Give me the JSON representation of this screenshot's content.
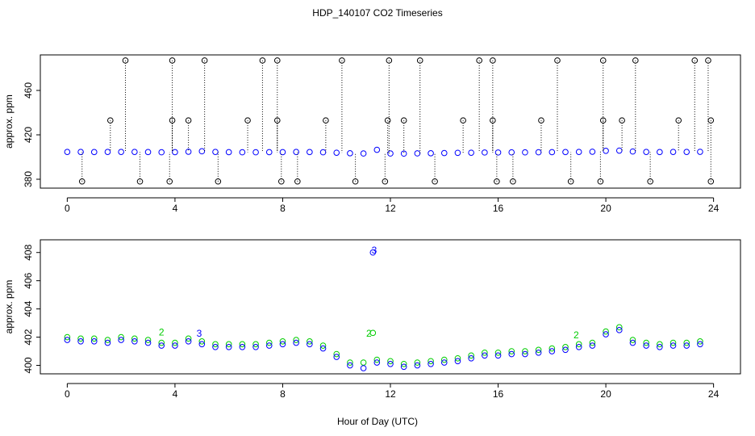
{
  "chart_data": [
    {
      "type": "scatter",
      "title": "HDP_140107  CO2 Timeseries",
      "ylabel": "approx. ppm",
      "xlim": [
        -1,
        25
      ],
      "xticks": [
        0,
        4,
        8,
        12,
        16,
        20,
        24
      ],
      "ylim": [
        372,
        492
      ],
      "yticks": [
        380,
        420,
        460
      ],
      "series": [
        {
          "color": "#0000ff",
          "x": [
            0,
            0.5,
            1,
            1.5,
            2,
            2.5,
            3,
            3.5,
            4,
            4.5,
            5,
            5.5,
            6,
            6.5,
            7,
            7.5,
            8,
            8.5,
            9,
            9.5,
            10,
            10.5,
            11,
            11.5,
            12,
            12.5,
            13,
            13.5,
            14,
            14.5,
            15,
            15.5,
            16,
            16.5,
            17,
            17.5,
            18,
            18.5,
            19,
            19.5,
            20,
            20.5,
            21,
            21.5,
            22,
            22.5,
            23,
            23.5
          ],
          "values": [
            404.6,
            404.6,
            404.5,
            404.6,
            404.6,
            404.6,
            404.5,
            404.3,
            404.4,
            404.8,
            405.2,
            404.6,
            404.4,
            404.3,
            404.3,
            404.4,
            404.4,
            404.6,
            404.5,
            404.3,
            403.9,
            403.4,
            403.2,
            406.5,
            403.2,
            403.1,
            403.3,
            403.4,
            403.6,
            403.8,
            403.9,
            404.1,
            404.1,
            404.2,
            404.2,
            404.3,
            404.4,
            404.5,
            404.6,
            404.8,
            405.6,
            405.8,
            405.0,
            404.6,
            404.5,
            404.6,
            404.6,
            404.7
          ]
        },
        {
          "color": "#000000",
          "drops": true,
          "x": [
            2.16,
            3.9,
            5.1,
            7.25,
            7.8,
            10.2,
            11.95,
            13.1,
            15.3,
            15.8,
            18.2,
            19.9,
            21.1,
            23.3,
            23.8,
            1.6,
            3.9,
            4.5,
            6.7,
            7.8,
            9.6,
            11.9,
            12.5,
            14.7,
            15.8,
            17.6,
            19.9,
            20.6,
            22.7,
            23.9,
            0.55,
            2.7,
            3.8,
            5.6,
            7.95,
            8.55,
            10.7,
            11.8,
            13.65,
            15.95,
            16.55,
            18.7,
            19.8,
            21.65,
            23.9
          ],
          "values": [
            487,
            487,
            487,
            487,
            487,
            487,
            487,
            487,
            487,
            487,
            487,
            487,
            487,
            487,
            487,
            433,
            433,
            433,
            433,
            433,
            433,
            433,
            433,
            433,
            433,
            433,
            433,
            433,
            433,
            433,
            378,
            378,
            378,
            378,
            378,
            378,
            378,
            378,
            378,
            378,
            378,
            378,
            378,
            378,
            378
          ]
        }
      ]
    },
    {
      "type": "scatter",
      "ylabel": "approx. ppm",
      "xlabel": "Hour of Day (UTC)",
      "xlim": [
        -1,
        25
      ],
      "xticks": [
        0,
        4,
        8,
        12,
        16,
        20,
        24
      ],
      "ylim": [
        399.4,
        408.9
      ],
      "yticks": [
        400,
        402,
        404,
        406,
        408
      ],
      "series": [
        {
          "color": "#00cc00",
          "x": [
            0,
            0.5,
            1,
            1.5,
            2,
            2.5,
            3,
            3.5,
            4,
            4.5,
            5,
            5.5,
            6,
            6.5,
            7,
            7.5,
            8,
            8.5,
            9,
            9.5,
            10,
            10.5,
            11,
            11.35,
            11.5,
            12,
            12.5,
            13,
            13.5,
            14,
            14.5,
            15,
            15.5,
            16,
            16.5,
            17,
            17.5,
            18,
            18.5,
            19,
            19.5,
            20,
            20.5,
            21,
            21.5,
            22,
            22.5,
            23,
            23.5
          ],
          "values": [
            402.0,
            401.9,
            401.9,
            401.8,
            402.0,
            401.9,
            401.8,
            401.6,
            401.6,
            401.9,
            401.7,
            401.5,
            401.5,
            401.5,
            401.5,
            401.6,
            401.7,
            401.8,
            401.7,
            401.4,
            400.8,
            400.2,
            400.2,
            402.3,
            400.4,
            400.3,
            400.1,
            400.2,
            400.3,
            400.4,
            400.5,
            400.7,
            400.9,
            400.9,
            401.0,
            401.0,
            401.1,
            401.2,
            401.3,
            401.5,
            401.6,
            402.4,
            402.7,
            401.8,
            401.6,
            401.5,
            401.6,
            401.6,
            401.7
          ]
        },
        {
          "color": "#0000ff",
          "x": [
            0,
            0.5,
            1,
            1.5,
            2,
            2.5,
            3,
            3.5,
            4,
            4.5,
            5,
            5.5,
            6,
            6.5,
            7,
            7.5,
            8,
            8.5,
            9,
            9.5,
            10,
            10.5,
            11,
            11.35,
            11.5,
            12,
            12.5,
            13,
            13.5,
            14,
            14.5,
            15,
            15.5,
            16,
            16.5,
            17,
            17.5,
            18,
            18.5,
            19,
            19.5,
            20,
            20.5,
            21,
            21.5,
            22,
            22.5,
            23,
            23.5
          ],
          "values": [
            401.8,
            401.7,
            401.7,
            401.6,
            401.8,
            401.7,
            401.6,
            401.4,
            401.4,
            401.7,
            401.5,
            401.3,
            401.3,
            401.3,
            401.3,
            401.4,
            401.5,
            401.6,
            401.5,
            401.2,
            400.6,
            400.0,
            399.8,
            408.0,
            400.2,
            400.1,
            399.9,
            400.0,
            400.1,
            400.2,
            400.3,
            400.5,
            400.7,
            400.7,
            400.8,
            400.8,
            400.9,
            401.0,
            401.1,
            401.3,
            401.4,
            402.2,
            402.5,
            401.6,
            401.4,
            401.3,
            401.4,
            401.4,
            401.5
          ]
        }
      ],
      "annotations": [
        {
          "text": "3",
          "x": 11.4,
          "y": 408.1,
          "color": "#0000ff"
        },
        {
          "text": "2",
          "x": 3.5,
          "y": 402.3,
          "color": "#00cc00"
        },
        {
          "text": "3",
          "x": 4.9,
          "y": 402.2,
          "color": "#0000ff"
        },
        {
          "text": "2",
          "x": 11.2,
          "y": 402.2,
          "color": "#00cc00"
        },
        {
          "text": "2",
          "x": 18.9,
          "y": 402.1,
          "color": "#00cc00"
        }
      ]
    }
  ]
}
